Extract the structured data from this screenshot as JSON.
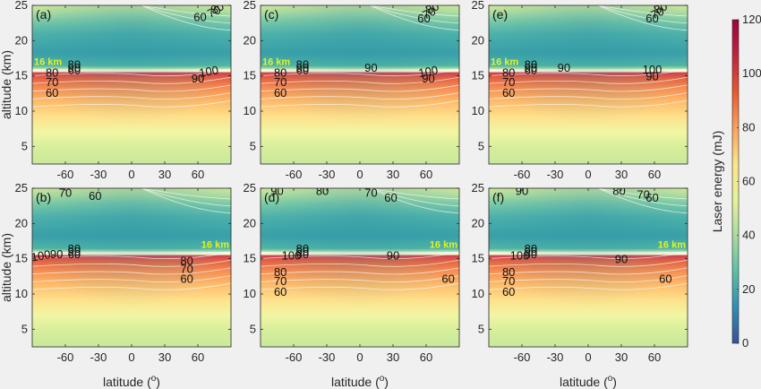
{
  "chart_data": {
    "type": "heatmap",
    "colorbar": {
      "label": "Laser energy (mJ)",
      "min": 0,
      "max": 120,
      "ticks": [
        0,
        20,
        40,
        60,
        80,
        100,
        120
      ],
      "colors": [
        "#3b4ea0",
        "#2f8fb3",
        "#5cc0a4",
        "#a9dca2",
        "#e7f29a",
        "#fde487",
        "#fba15b",
        "#e9572f",
        "#c2233f",
        "#9e0142"
      ]
    },
    "x_axis": {
      "label": "latitude (",
      "label_sup": "o",
      "label_tail": ")",
      "range": [
        -90,
        90
      ],
      "ticks": [
        -60,
        -30,
        0,
        30,
        60
      ]
    },
    "y_axis": {
      "label": "altitude (km)",
      "range": [
        2.5,
        25
      ],
      "ticks": [
        5,
        10,
        15,
        20,
        25
      ]
    },
    "highlight_text": "16 km",
    "panels": [
      {
        "label": "(a)",
        "highlight_pos": "left",
        "contours": [
          {
            "text": "80",
            "lat": 78,
            "alt": 24.5,
            "rot": -25
          },
          {
            "text": "70",
            "lat": 75,
            "alt": 24.0,
            "rot": -25
          },
          {
            "text": "60",
            "lat": 62,
            "alt": 23.2,
            "rot": 0
          },
          {
            "text": "80",
            "lat": -52,
            "alt": 16.5,
            "rot": 0
          },
          {
            "text": "90",
            "lat": -52,
            "alt": 16.0,
            "rot": 0
          },
          {
            "text": "60",
            "lat": -52,
            "alt": 15.7,
            "rot": 0
          },
          {
            "text": "80",
            "lat": -72,
            "alt": 15.3,
            "rot": 0
          },
          {
            "text": "70",
            "lat": -72,
            "alt": 14.0,
            "rot": 0
          },
          {
            "text": "60",
            "lat": -72,
            "alt": 12.5,
            "rot": 0
          },
          {
            "text": "100",
            "lat": 70,
            "alt": 15.5,
            "rot": -10
          },
          {
            "text": "90",
            "lat": 60,
            "alt": 14.5,
            "rot": 0
          }
        ]
      },
      {
        "label": "(c)",
        "highlight_pos": "left",
        "contours": [
          {
            "text": "80",
            "lat": 66,
            "alt": 24.5,
            "rot": -25
          },
          {
            "text": "70",
            "lat": 63,
            "alt": 23.8,
            "rot": -25
          },
          {
            "text": "60",
            "lat": 58,
            "alt": 23.0,
            "rot": 0
          },
          {
            "text": "80",
            "lat": -52,
            "alt": 16.5,
            "rot": 0
          },
          {
            "text": "90",
            "lat": -52,
            "alt": 16.0,
            "rot": 0
          },
          {
            "text": "60",
            "lat": -52,
            "alt": 15.7,
            "rot": 0
          },
          {
            "text": "90",
            "lat": 10,
            "alt": 16.0,
            "rot": 0
          },
          {
            "text": "80",
            "lat": -72,
            "alt": 15.3,
            "rot": 0
          },
          {
            "text": "70",
            "lat": -72,
            "alt": 14.0,
            "rot": 0
          },
          {
            "text": "60",
            "lat": -72,
            "alt": 12.5,
            "rot": 0
          },
          {
            "text": "100",
            "lat": 62,
            "alt": 15.5,
            "rot": -10
          },
          {
            "text": "90",
            "lat": 62,
            "alt": 14.5,
            "rot": 0
          }
        ]
      },
      {
        "label": "(e)",
        "highlight_pos": "left",
        "contours": [
          {
            "text": "80",
            "lat": 66,
            "alt": 24.5,
            "rot": -25
          },
          {
            "text": "70",
            "lat": 63,
            "alt": 23.8,
            "rot": -25
          },
          {
            "text": "60",
            "lat": 58,
            "alt": 23.0,
            "rot": 0
          },
          {
            "text": "80",
            "lat": -52,
            "alt": 16.5,
            "rot": 0
          },
          {
            "text": "90",
            "lat": -52,
            "alt": 16.0,
            "rot": 0
          },
          {
            "text": "60",
            "lat": -52,
            "alt": 15.7,
            "rot": 0
          },
          {
            "text": "90",
            "lat": -22,
            "alt": 16.0,
            "rot": 0
          },
          {
            "text": "80",
            "lat": -72,
            "alt": 15.3,
            "rot": 0
          },
          {
            "text": "70",
            "lat": -72,
            "alt": 14.0,
            "rot": 0
          },
          {
            "text": "60",
            "lat": -72,
            "alt": 12.5,
            "rot": 0
          },
          {
            "text": "100",
            "lat": 58,
            "alt": 15.8,
            "rot": 0
          },
          {
            "text": "90",
            "lat": 58,
            "alt": 14.8,
            "rot": 0
          }
        ]
      },
      {
        "label": "(b)",
        "highlight_pos": "right",
        "contours": [
          {
            "text": "70",
            "lat": -60,
            "alt": 24.2,
            "rot": 0
          },
          {
            "text": "60",
            "lat": -33,
            "alt": 23.8,
            "rot": 0
          },
          {
            "text": "80",
            "lat": -52,
            "alt": 16.3,
            "rot": 0
          },
          {
            "text": "90",
            "lat": -52,
            "alt": 15.9,
            "rot": 0
          },
          {
            "text": "60",
            "lat": -52,
            "alt": 15.5,
            "rot": 0
          },
          {
            "text": "90",
            "lat": -68,
            "alt": 15.5,
            "rot": 0
          },
          {
            "text": "100",
            "lat": -82,
            "alt": 15.3,
            "rot": -10
          },
          {
            "text": "80",
            "lat": 50,
            "alt": 14.6,
            "rot": 0
          },
          {
            "text": "70",
            "lat": 50,
            "alt": 13.4,
            "rot": 0
          },
          {
            "text": "60",
            "lat": 50,
            "alt": 12.0,
            "rot": 0
          }
        ]
      },
      {
        "label": "(d)",
        "highlight_pos": "right",
        "contours": [
          {
            "text": "90",
            "lat": -75,
            "alt": 24.5,
            "rot": 0
          },
          {
            "text": "80",
            "lat": -34,
            "alt": 24.5,
            "rot": 0
          },
          {
            "text": "70",
            "lat": 10,
            "alt": 24.2,
            "rot": 0
          },
          {
            "text": "60",
            "lat": 28,
            "alt": 23.5,
            "rot": 0
          },
          {
            "text": "80",
            "lat": -52,
            "alt": 16.3,
            "rot": 0
          },
          {
            "text": "90",
            "lat": -52,
            "alt": 15.9,
            "rot": 0
          },
          {
            "text": "60",
            "lat": -52,
            "alt": 15.5,
            "rot": 0
          },
          {
            "text": "100",
            "lat": -62,
            "alt": 15.3,
            "rot": 0
          },
          {
            "text": "90",
            "lat": 30,
            "alt": 15.3,
            "rot": 0
          },
          {
            "text": "80",
            "lat": -72,
            "alt": 13.0,
            "rot": 0
          },
          {
            "text": "70",
            "lat": -72,
            "alt": 11.7,
            "rot": 0
          },
          {
            "text": "60",
            "lat": -72,
            "alt": 10.2,
            "rot": 0
          },
          {
            "text": "60",
            "lat": 80,
            "alt": 12.0,
            "rot": 0
          }
        ]
      },
      {
        "label": "(f)",
        "highlight_pos": "right",
        "contours": [
          {
            "text": "90",
            "lat": -60,
            "alt": 24.5,
            "rot": 0
          },
          {
            "text": "80",
            "lat": 28,
            "alt": 24.5,
            "rot": 0
          },
          {
            "text": "70",
            "lat": 50,
            "alt": 24.0,
            "rot": 0
          },
          {
            "text": "60",
            "lat": 58,
            "alt": 23.5,
            "rot": 0
          },
          {
            "text": "80",
            "lat": -52,
            "alt": 16.3,
            "rot": 0
          },
          {
            "text": "90",
            "lat": -52,
            "alt": 15.9,
            "rot": 0
          },
          {
            "text": "60",
            "lat": -52,
            "alt": 15.5,
            "rot": 0
          },
          {
            "text": "100",
            "lat": -62,
            "alt": 15.3,
            "rot": 0
          },
          {
            "text": "90",
            "lat": 30,
            "alt": 14.8,
            "rot": 0
          },
          {
            "text": "80",
            "lat": -72,
            "alt": 13.0,
            "rot": 0
          },
          {
            "text": "70",
            "lat": -72,
            "alt": 11.7,
            "rot": 0
          },
          {
            "text": "60",
            "lat": -72,
            "alt": 10.2,
            "rot": 0
          },
          {
            "text": "60",
            "lat": 70,
            "alt": 12.0,
            "rot": 0
          }
        ]
      }
    ]
  }
}
